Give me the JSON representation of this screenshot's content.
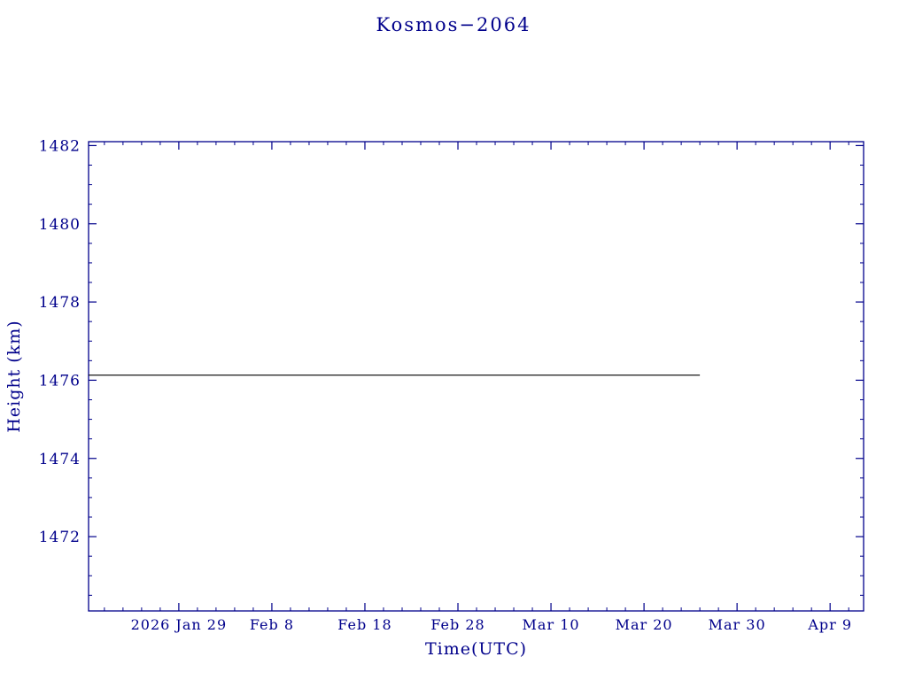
{
  "title": "Kosmos−2064",
  "axis_color": "#00008b",
  "chart_data": {
    "type": "line",
    "title": "Kosmos−2064",
    "xlabel": "Time(UTC)",
    "ylabel": "Height (km)",
    "x_unit": "days since 2026 Jan 29",
    "xlim": [
      -9.7,
      73.6
    ],
    "ylim": [
      1470.1,
      1482.1
    ],
    "x_ticks": [
      {
        "day": 0,
        "label": "2026 Jan 29"
      },
      {
        "day": 10,
        "label": "Feb 8"
      },
      {
        "day": 20,
        "label": "Feb 18"
      },
      {
        "day": 30,
        "label": "Feb 28"
      },
      {
        "day": 40,
        "label": "Mar 10"
      },
      {
        "day": 50,
        "label": "Mar 20"
      },
      {
        "day": 60,
        "label": "Mar 30"
      },
      {
        "day": 70,
        "label": "Apr 9"
      }
    ],
    "x_minor_step": 2,
    "y_ticks": [
      1472,
      1474,
      1476,
      1478,
      1480,
      1482
    ],
    "y_minor_step": 0.5,
    "grid": false,
    "legend": "none",
    "series": [
      {
        "name": "height",
        "color": "#000000",
        "x_days": [
          -9.7,
          56.0
        ],
        "y": [
          1476.13,
          1476.13
        ]
      }
    ]
  }
}
